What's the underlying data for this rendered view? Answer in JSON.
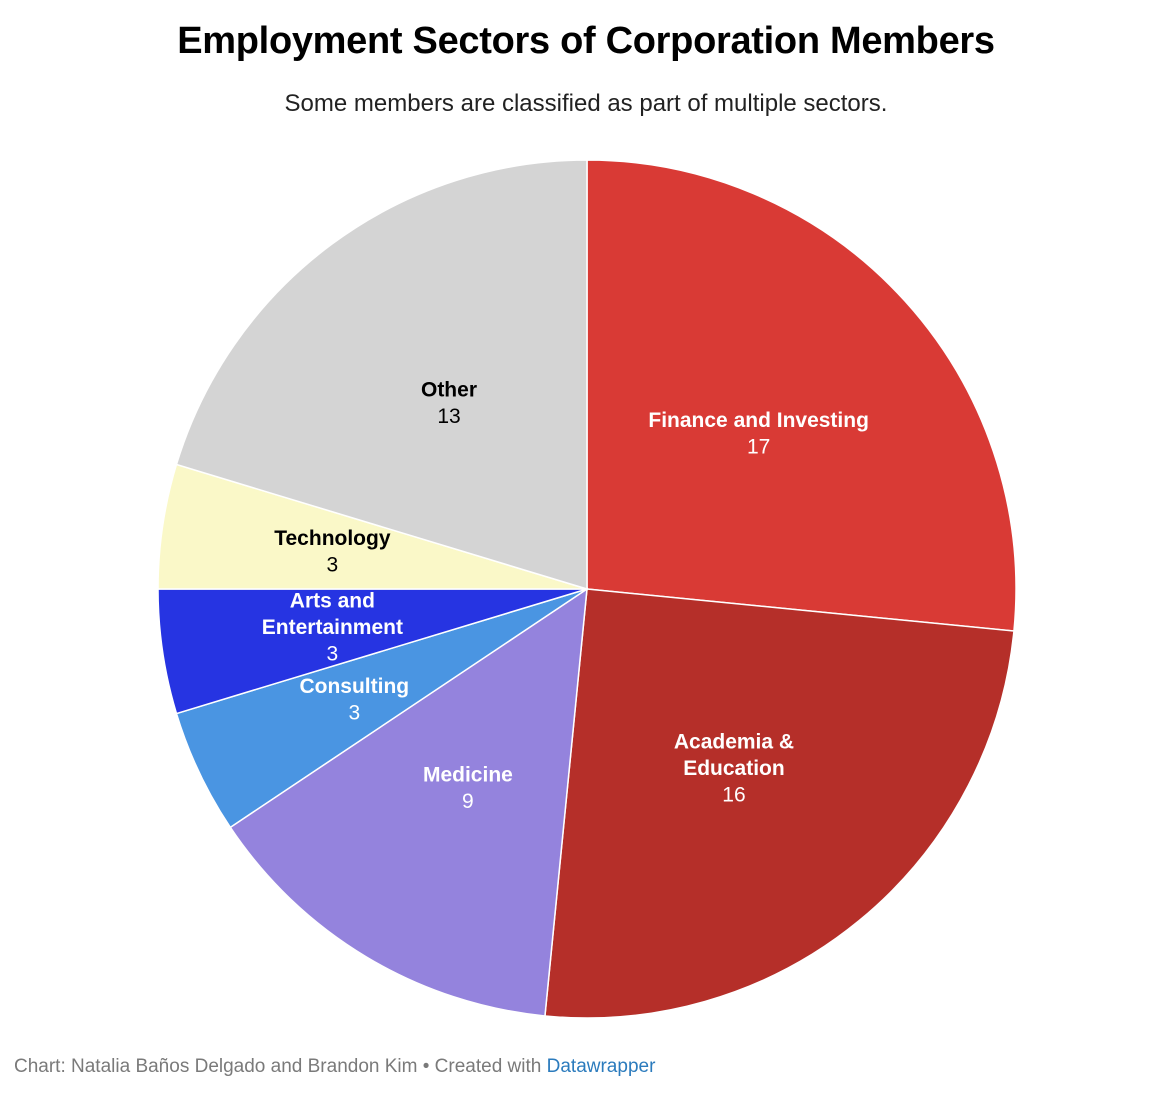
{
  "chart_data": {
    "type": "pie",
    "title": "Employment Sectors of Corporation Members",
    "subtitle": "Some members are classified as part of multiple sectors.",
    "slices": [
      {
        "label": "Finance and Investing",
        "label_lines": [
          "Finance and Investing"
        ],
        "value": 17,
        "color": "#d93a35",
        "text_color": "#ffffff"
      },
      {
        "label": "Academia & Education",
        "label_lines": [
          "Academia &",
          "Education"
        ],
        "value": 16,
        "color": "#b52f29",
        "text_color": "#ffffff"
      },
      {
        "label": "Medicine",
        "label_lines": [
          "Medicine"
        ],
        "value": 9,
        "color": "#9483dd",
        "text_color": "#ffffff"
      },
      {
        "label": "Consulting",
        "label_lines": [
          "Consulting"
        ],
        "value": 3,
        "color": "#4a95e2",
        "text_color": "#ffffff"
      },
      {
        "label": "Arts and Entertainment",
        "label_lines": [
          "Arts and",
          "Entertainment"
        ],
        "value": 3,
        "color": "#2634e2",
        "text_color": "#ffffff"
      },
      {
        "label": "Technology",
        "label_lines": [
          "Technology"
        ],
        "value": 3,
        "color": "#faf8c8",
        "text_color": "#000000"
      },
      {
        "label": "Other",
        "label_lines": [
          "Other"
        ],
        "value": 13,
        "color": "#d4d4d4",
        "text_color": "#000000"
      }
    ]
  },
  "footer": {
    "prefix": "Chart: Natalia Baños Delgado and Brandon Kim • Created with ",
    "link": "Datawrapper"
  }
}
